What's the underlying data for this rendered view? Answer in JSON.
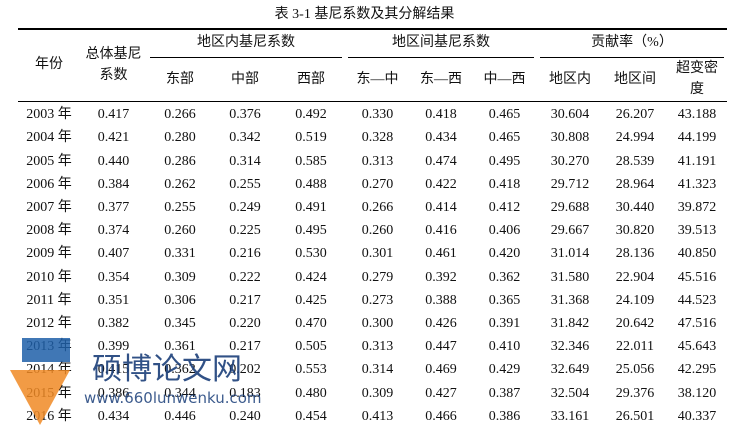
{
  "title": "表 3-1  基尼系数及其分解结果",
  "header": {
    "year": "年份",
    "total": "总体基尼系数",
    "groups": [
      {
        "label": "地区内基尼系数",
        "columns": [
          "东部",
          "中部",
          "西部"
        ]
      },
      {
        "label": "地区间基尼系数",
        "columns": [
          "东—中",
          "东—西",
          "中—西"
        ]
      },
      {
        "label": "贡献率（%）",
        "columns": [
          "地区内",
          "地区间",
          "超变密度"
        ]
      }
    ]
  },
  "rows": [
    [
      "2003 年",
      "0.417",
      "0.266",
      "0.376",
      "0.492",
      "0.330",
      "0.418",
      "0.465",
      "30.604",
      "26.207",
      "43.188"
    ],
    [
      "2004 年",
      "0.421",
      "0.280",
      "0.342",
      "0.519",
      "0.328",
      "0.434",
      "0.465",
      "30.808",
      "24.994",
      "44.199"
    ],
    [
      "2005 年",
      "0.440",
      "0.286",
      "0.314",
      "0.585",
      "0.313",
      "0.474",
      "0.495",
      "30.270",
      "28.539",
      "41.191"
    ],
    [
      "2006 年",
      "0.384",
      "0.262",
      "0.255",
      "0.488",
      "0.270",
      "0.422",
      "0.418",
      "29.712",
      "28.964",
      "41.323"
    ],
    [
      "2007 年",
      "0.377",
      "0.255",
      "0.249",
      "0.491",
      "0.266",
      "0.414",
      "0.412",
      "29.688",
      "30.440",
      "39.872"
    ],
    [
      "2008 年",
      "0.374",
      "0.260",
      "0.225",
      "0.495",
      "0.260",
      "0.416",
      "0.406",
      "29.667",
      "30.820",
      "39.513"
    ],
    [
      "2009 年",
      "0.407",
      "0.331",
      "0.216",
      "0.530",
      "0.301",
      "0.461",
      "0.420",
      "31.014",
      "28.136",
      "40.850"
    ],
    [
      "2010 年",
      "0.354",
      "0.309",
      "0.222",
      "0.424",
      "0.279",
      "0.392",
      "0.362",
      "31.580",
      "22.904",
      "45.516"
    ],
    [
      "2011 年",
      "0.351",
      "0.306",
      "0.217",
      "0.425",
      "0.273",
      "0.388",
      "0.365",
      "31.368",
      "24.109",
      "44.523"
    ],
    [
      "2012 年",
      "0.382",
      "0.345",
      "0.220",
      "0.470",
      "0.300",
      "0.426",
      "0.391",
      "31.842",
      "20.642",
      "47.516"
    ],
    [
      "2013 年",
      "0.399",
      "0.361",
      "0.217",
      "0.505",
      "0.313",
      "0.447",
      "0.410",
      "32.346",
      "22.011",
      "45.643"
    ],
    [
      "2014 年",
      "0.415",
      "0.362",
      "0.202",
      "0.553",
      "0.314",
      "0.469",
      "0.429",
      "32.649",
      "25.056",
      "42.295"
    ],
    [
      "2015 年",
      "0.386",
      "0.344",
      "0.183",
      "0.480",
      "0.309",
      "0.427",
      "0.387",
      "32.504",
      "29.376",
      "38.120"
    ],
    [
      "2016 年",
      "0.434",
      "0.446",
      "0.240",
      "0.454",
      "0.413",
      "0.466",
      "0.386",
      "33.161",
      "26.501",
      "40.337"
    ]
  ],
  "watermark": {
    "name": "硕博论文网",
    "url": "www.660lunwenku.com"
  }
}
